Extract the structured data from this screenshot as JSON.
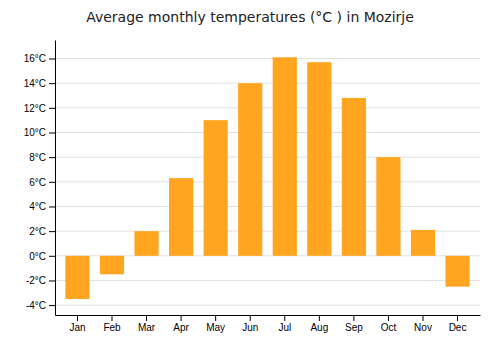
{
  "chart_data": {
    "type": "bar",
    "title": "Average monthly temperatures (°C ) in Mozirje",
    "categories": [
      "Jan",
      "Feb",
      "Mar",
      "Apr",
      "May",
      "Jun",
      "Jul",
      "Aug",
      "Sep",
      "Oct",
      "Nov",
      "Dec"
    ],
    "values": [
      -3.5,
      -1.5,
      2.0,
      6.3,
      11.0,
      14.0,
      16.1,
      15.7,
      12.8,
      8.0,
      2.1,
      -2.5
    ],
    "color": "#FFA520",
    "ylim": [
      -4.8,
      17.5
    ],
    "yticks": [
      {
        "value": -4,
        "label": "-4°C"
      },
      {
        "value": -2,
        "label": "-2°C"
      },
      {
        "value": 0,
        "label": "0°C"
      },
      {
        "value": 2,
        "label": "2°C"
      },
      {
        "value": 4,
        "label": "4°C"
      },
      {
        "value": 6,
        "label": "6°C"
      },
      {
        "value": 8,
        "label": "8°C"
      },
      {
        "value": 10,
        "label": "10°C"
      },
      {
        "value": 12,
        "label": "12°C"
      },
      {
        "value": 14,
        "label": "14°C"
      },
      {
        "value": 16,
        "label": "16°C"
      }
    ],
    "grid": true
  }
}
